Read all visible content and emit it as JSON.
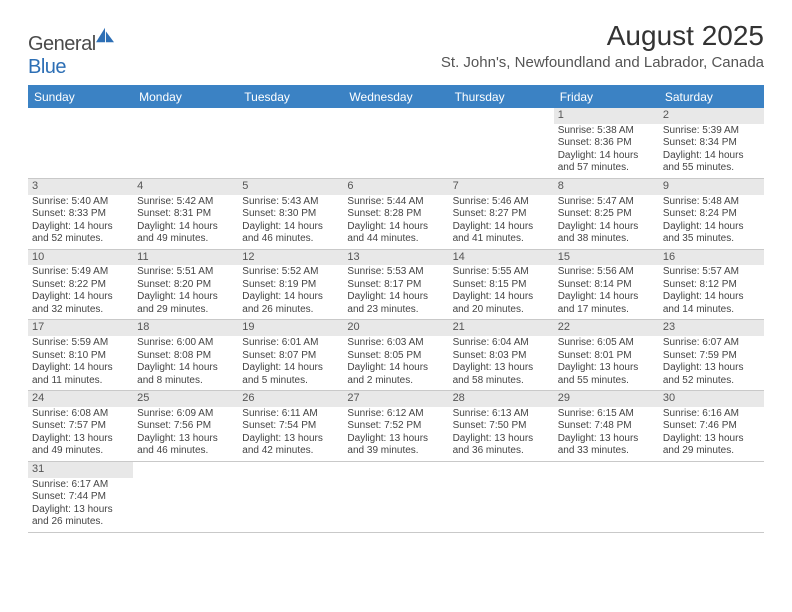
{
  "logo": {
    "text1": "General",
    "text2": "Blue"
  },
  "title": "August 2025",
  "location": "St. John's, Newfoundland and Labrador, Canada",
  "colors": {
    "header_bg": "#3b82c4",
    "header_text": "#ffffff",
    "daynum_bg": "#e8e8e8",
    "border": "#c9c9c9",
    "body_text": "#444444",
    "title_text": "#333333"
  },
  "weekdays": [
    "Sunday",
    "Monday",
    "Tuesday",
    "Wednesday",
    "Thursday",
    "Friday",
    "Saturday"
  ],
  "weeks": [
    [
      {
        "n": "",
        "empty": true
      },
      {
        "n": "",
        "empty": true
      },
      {
        "n": "",
        "empty": true
      },
      {
        "n": "",
        "empty": true
      },
      {
        "n": "",
        "empty": true
      },
      {
        "n": "1",
        "sr": "Sunrise: 5:38 AM",
        "ss": "Sunset: 8:36 PM",
        "dl1": "Daylight: 14 hours",
        "dl2": "and 57 minutes."
      },
      {
        "n": "2",
        "sr": "Sunrise: 5:39 AM",
        "ss": "Sunset: 8:34 PM",
        "dl1": "Daylight: 14 hours",
        "dl2": "and 55 minutes."
      }
    ],
    [
      {
        "n": "3",
        "sr": "Sunrise: 5:40 AM",
        "ss": "Sunset: 8:33 PM",
        "dl1": "Daylight: 14 hours",
        "dl2": "and 52 minutes."
      },
      {
        "n": "4",
        "sr": "Sunrise: 5:42 AM",
        "ss": "Sunset: 8:31 PM",
        "dl1": "Daylight: 14 hours",
        "dl2": "and 49 minutes."
      },
      {
        "n": "5",
        "sr": "Sunrise: 5:43 AM",
        "ss": "Sunset: 8:30 PM",
        "dl1": "Daylight: 14 hours",
        "dl2": "and 46 minutes."
      },
      {
        "n": "6",
        "sr": "Sunrise: 5:44 AM",
        "ss": "Sunset: 8:28 PM",
        "dl1": "Daylight: 14 hours",
        "dl2": "and 44 minutes."
      },
      {
        "n": "7",
        "sr": "Sunrise: 5:46 AM",
        "ss": "Sunset: 8:27 PM",
        "dl1": "Daylight: 14 hours",
        "dl2": "and 41 minutes."
      },
      {
        "n": "8",
        "sr": "Sunrise: 5:47 AM",
        "ss": "Sunset: 8:25 PM",
        "dl1": "Daylight: 14 hours",
        "dl2": "and 38 minutes."
      },
      {
        "n": "9",
        "sr": "Sunrise: 5:48 AM",
        "ss": "Sunset: 8:24 PM",
        "dl1": "Daylight: 14 hours",
        "dl2": "and 35 minutes."
      }
    ],
    [
      {
        "n": "10",
        "sr": "Sunrise: 5:49 AM",
        "ss": "Sunset: 8:22 PM",
        "dl1": "Daylight: 14 hours",
        "dl2": "and 32 minutes."
      },
      {
        "n": "11",
        "sr": "Sunrise: 5:51 AM",
        "ss": "Sunset: 8:20 PM",
        "dl1": "Daylight: 14 hours",
        "dl2": "and 29 minutes."
      },
      {
        "n": "12",
        "sr": "Sunrise: 5:52 AM",
        "ss": "Sunset: 8:19 PM",
        "dl1": "Daylight: 14 hours",
        "dl2": "and 26 minutes."
      },
      {
        "n": "13",
        "sr": "Sunrise: 5:53 AM",
        "ss": "Sunset: 8:17 PM",
        "dl1": "Daylight: 14 hours",
        "dl2": "and 23 minutes."
      },
      {
        "n": "14",
        "sr": "Sunrise: 5:55 AM",
        "ss": "Sunset: 8:15 PM",
        "dl1": "Daylight: 14 hours",
        "dl2": "and 20 minutes."
      },
      {
        "n": "15",
        "sr": "Sunrise: 5:56 AM",
        "ss": "Sunset: 8:14 PM",
        "dl1": "Daylight: 14 hours",
        "dl2": "and 17 minutes."
      },
      {
        "n": "16",
        "sr": "Sunrise: 5:57 AM",
        "ss": "Sunset: 8:12 PM",
        "dl1": "Daylight: 14 hours",
        "dl2": "and 14 minutes."
      }
    ],
    [
      {
        "n": "17",
        "sr": "Sunrise: 5:59 AM",
        "ss": "Sunset: 8:10 PM",
        "dl1": "Daylight: 14 hours",
        "dl2": "and 11 minutes."
      },
      {
        "n": "18",
        "sr": "Sunrise: 6:00 AM",
        "ss": "Sunset: 8:08 PM",
        "dl1": "Daylight: 14 hours",
        "dl2": "and 8 minutes."
      },
      {
        "n": "19",
        "sr": "Sunrise: 6:01 AM",
        "ss": "Sunset: 8:07 PM",
        "dl1": "Daylight: 14 hours",
        "dl2": "and 5 minutes."
      },
      {
        "n": "20",
        "sr": "Sunrise: 6:03 AM",
        "ss": "Sunset: 8:05 PM",
        "dl1": "Daylight: 14 hours",
        "dl2": "and 2 minutes."
      },
      {
        "n": "21",
        "sr": "Sunrise: 6:04 AM",
        "ss": "Sunset: 8:03 PM",
        "dl1": "Daylight: 13 hours",
        "dl2": "and 58 minutes."
      },
      {
        "n": "22",
        "sr": "Sunrise: 6:05 AM",
        "ss": "Sunset: 8:01 PM",
        "dl1": "Daylight: 13 hours",
        "dl2": "and 55 minutes."
      },
      {
        "n": "23",
        "sr": "Sunrise: 6:07 AM",
        "ss": "Sunset: 7:59 PM",
        "dl1": "Daylight: 13 hours",
        "dl2": "and 52 minutes."
      }
    ],
    [
      {
        "n": "24",
        "sr": "Sunrise: 6:08 AM",
        "ss": "Sunset: 7:57 PM",
        "dl1": "Daylight: 13 hours",
        "dl2": "and 49 minutes."
      },
      {
        "n": "25",
        "sr": "Sunrise: 6:09 AM",
        "ss": "Sunset: 7:56 PM",
        "dl1": "Daylight: 13 hours",
        "dl2": "and 46 minutes."
      },
      {
        "n": "26",
        "sr": "Sunrise: 6:11 AM",
        "ss": "Sunset: 7:54 PM",
        "dl1": "Daylight: 13 hours",
        "dl2": "and 42 minutes."
      },
      {
        "n": "27",
        "sr": "Sunrise: 6:12 AM",
        "ss": "Sunset: 7:52 PM",
        "dl1": "Daylight: 13 hours",
        "dl2": "and 39 minutes."
      },
      {
        "n": "28",
        "sr": "Sunrise: 6:13 AM",
        "ss": "Sunset: 7:50 PM",
        "dl1": "Daylight: 13 hours",
        "dl2": "and 36 minutes."
      },
      {
        "n": "29",
        "sr": "Sunrise: 6:15 AM",
        "ss": "Sunset: 7:48 PM",
        "dl1": "Daylight: 13 hours",
        "dl2": "and 33 minutes."
      },
      {
        "n": "30",
        "sr": "Sunrise: 6:16 AM",
        "ss": "Sunset: 7:46 PM",
        "dl1": "Daylight: 13 hours",
        "dl2": "and 29 minutes."
      }
    ],
    [
      {
        "n": "31",
        "sr": "Sunrise: 6:17 AM",
        "ss": "Sunset: 7:44 PM",
        "dl1": "Daylight: 13 hours",
        "dl2": "and 26 minutes."
      },
      {
        "n": "",
        "empty": true
      },
      {
        "n": "",
        "empty": true
      },
      {
        "n": "",
        "empty": true
      },
      {
        "n": "",
        "empty": true
      },
      {
        "n": "",
        "empty": true
      },
      {
        "n": "",
        "empty": true
      }
    ]
  ]
}
